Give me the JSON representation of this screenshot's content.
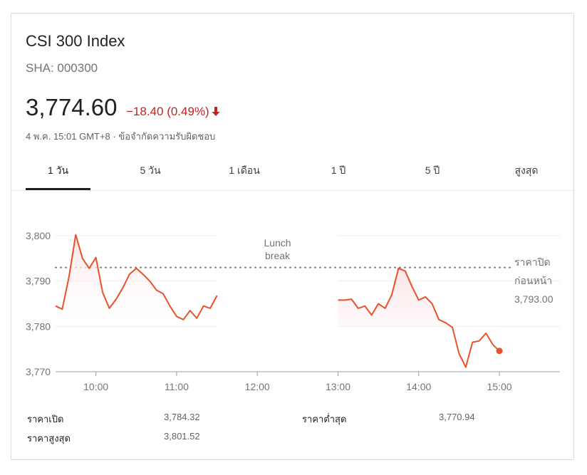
{
  "header": {
    "title": "CSI 300 Index",
    "ticker": "SHA: 000300",
    "price": "3,774.60",
    "change": "−18.40 (0.49%)",
    "timestamp": "4 พ.ค. 15:01 GMT+8 · ข้อจำกัดความรับผิดชอบ"
  },
  "tabs": [
    {
      "label": "1 วัน"
    },
    {
      "label": "5 วัน"
    },
    {
      "label": "1 เดือน"
    },
    {
      "label": "1 ปี"
    },
    {
      "label": "5 ปี"
    },
    {
      "label": "สูงสุด"
    }
  ],
  "colors": {
    "line": "#e8522b",
    "fill": "#fbe3e6",
    "grid": "#ebebeb",
    "prev_close": "#757575",
    "negative": "#c5221f"
  },
  "chart_data": {
    "type": "line",
    "x_axis": "time",
    "ylim": [
      3770,
      3800
    ],
    "yticks": [
      3770,
      3780,
      3790,
      3800
    ],
    "ytick_labels": [
      "3,770",
      "3,780",
      "3,790",
      "3,800"
    ],
    "xticks": [
      "10:00",
      "11:00",
      "12:00",
      "13:00",
      "14:00",
      "15:00"
    ],
    "lunch_label": [
      "Lunch",
      "break"
    ],
    "prev_close_label": [
      "ราคาปิด",
      "ก่อนหน้า",
      "3,793.00"
    ],
    "prev_close": 3793.0,
    "morning_x": [
      "09:30",
      "09:35",
      "09:40",
      "09:45",
      "09:50",
      "09:55",
      "10:00",
      "10:05",
      "10:10",
      "10:15",
      "10:20",
      "10:25",
      "10:30",
      "10:35",
      "10:40",
      "10:45",
      "10:50",
      "10:55",
      "11:00",
      "11:05",
      "11:10",
      "11:15",
      "11:20",
      "11:25",
      "11:30"
    ],
    "morning_y": [
      3784.5,
      3783.8,
      3791.0,
      3800.2,
      3795.0,
      3792.8,
      3795.2,
      3787.5,
      3784.0,
      3786.0,
      3788.5,
      3791.5,
      3792.8,
      3791.5,
      3790.0,
      3788.0,
      3787.2,
      3784.5,
      3782.2,
      3781.5,
      3783.5,
      3781.8,
      3784.5,
      3784.0,
      3786.8
    ],
    "afternoon_x": [
      "13:00",
      "13:05",
      "13:10",
      "13:15",
      "13:20",
      "13:25",
      "13:30",
      "13:35",
      "13:40",
      "13:45",
      "13:50",
      "13:55",
      "14:00",
      "14:05",
      "14:10",
      "14:15",
      "14:20",
      "14:25",
      "14:30",
      "14:35",
      "14:40",
      "14:45",
      "14:50",
      "14:55",
      "15:00"
    ],
    "afternoon_y": [
      3785.8,
      3785.8,
      3786.0,
      3784.0,
      3784.5,
      3782.5,
      3785.0,
      3784.0,
      3787.0,
      3792.8,
      3792.2,
      3788.8,
      3785.8,
      3786.5,
      3785.0,
      3781.5,
      3780.8,
      3779.8,
      3774.0,
      3771.0,
      3776.5,
      3776.8,
      3778.5,
      3776.0,
      3774.6
    ],
    "stats": [
      {
        "label": "ราคาเปิด",
        "value": "3,784.32"
      },
      {
        "label": "ราคาสูงสุด",
        "value": "3,801.52"
      },
      {
        "label": "ราคาต่ำสุด",
        "value": "3,770.94"
      }
    ]
  }
}
